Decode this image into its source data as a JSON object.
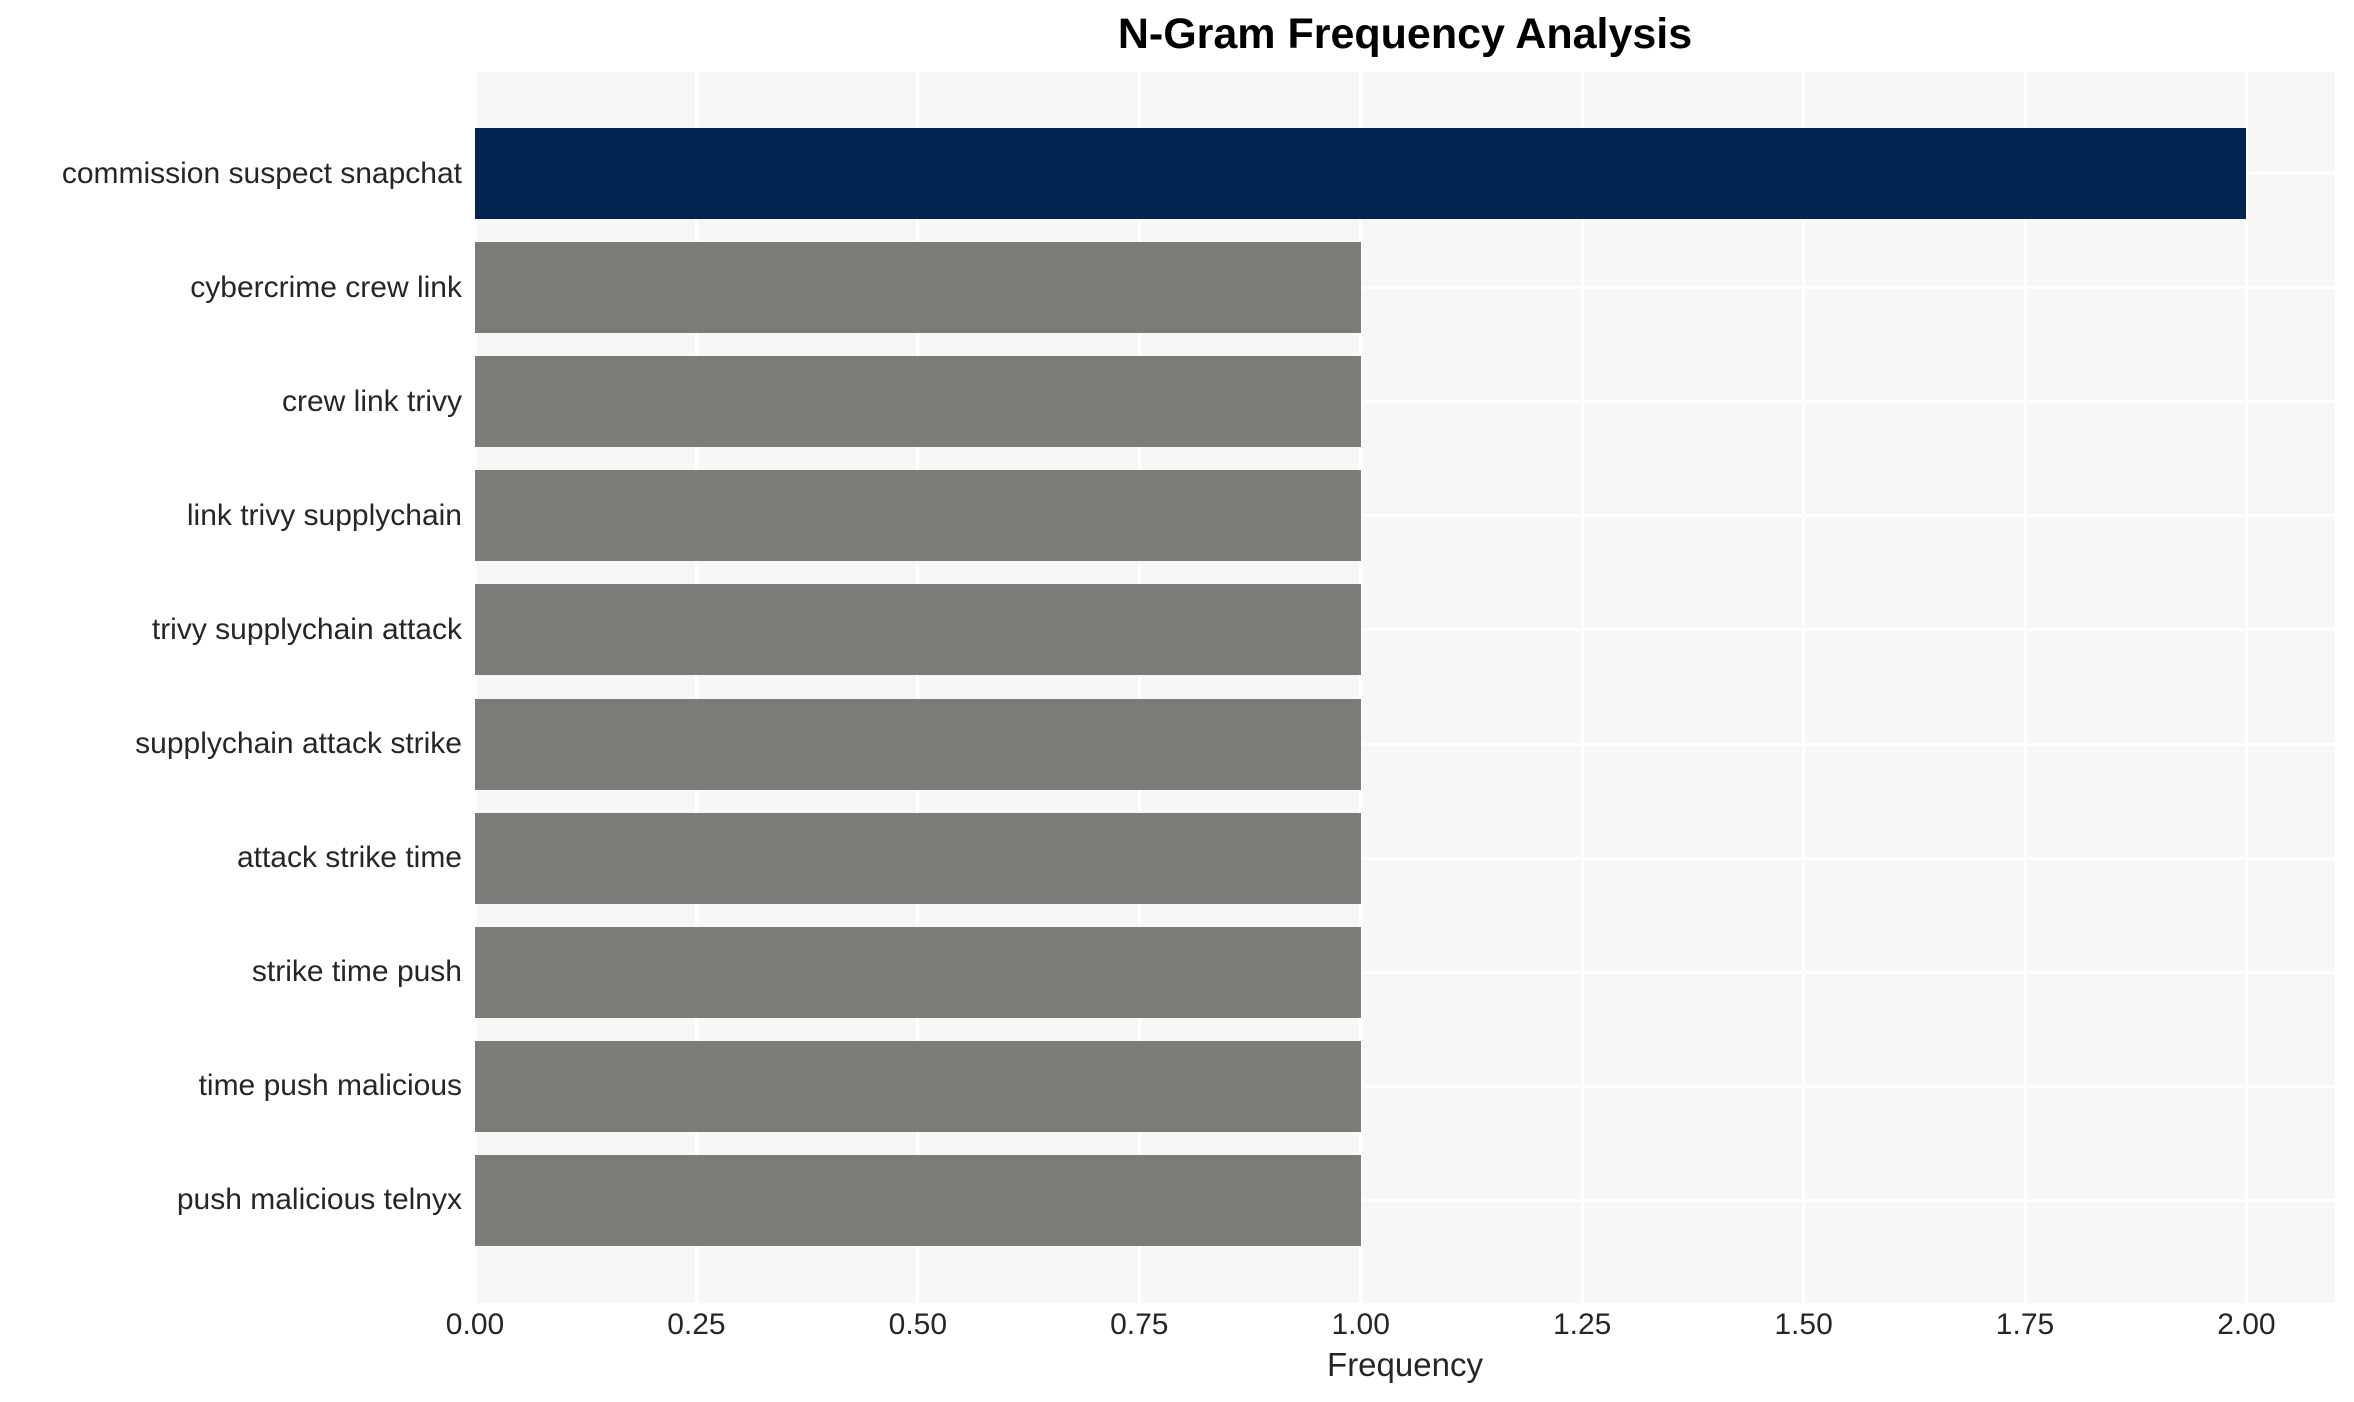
{
  "chart_data": {
    "type": "bar",
    "orientation": "horizontal",
    "title": "N-Gram Frequency Analysis",
    "xlabel": "Frequency",
    "ylabel": "",
    "categories": [
      "commission suspect snapchat",
      "cybercrime crew link",
      "crew link trivy",
      "link trivy supplychain",
      "trivy supplychain attack",
      "supplychain attack strike",
      "attack strike time",
      "strike time push",
      "time push malicious",
      "push malicious telnyx"
    ],
    "values": [
      2,
      1,
      1,
      1,
      1,
      1,
      1,
      1,
      1,
      1
    ],
    "bar_colors": [
      "#002550",
      "#7b7b78",
      "#7b7b78",
      "#7b7b78",
      "#7b7b78",
      "#7b7b78",
      "#7b7b78",
      "#7b7b78",
      "#7b7b78",
      "#7b7b78"
    ],
    "xticks": [
      0,
      0.25,
      0.5,
      0.75,
      1.0,
      1.25,
      1.5,
      1.75,
      2.0
    ],
    "xtick_labels": [
      "0.00",
      "0.25",
      "0.50",
      "0.75",
      "1.00",
      "1.25",
      "1.50",
      "1.75",
      "2.00"
    ],
    "xlim": [
      0,
      2.1
    ],
    "grid": true,
    "grid_color": "#ffffff",
    "legend_position": "none",
    "colors": {
      "highlight_bar": "#002550",
      "default_bar": "#7b7b78",
      "plot_background": "#f7f7f7",
      "figure_background": "#ffffff",
      "text": "#262626",
      "title_text": "#000000"
    }
  }
}
